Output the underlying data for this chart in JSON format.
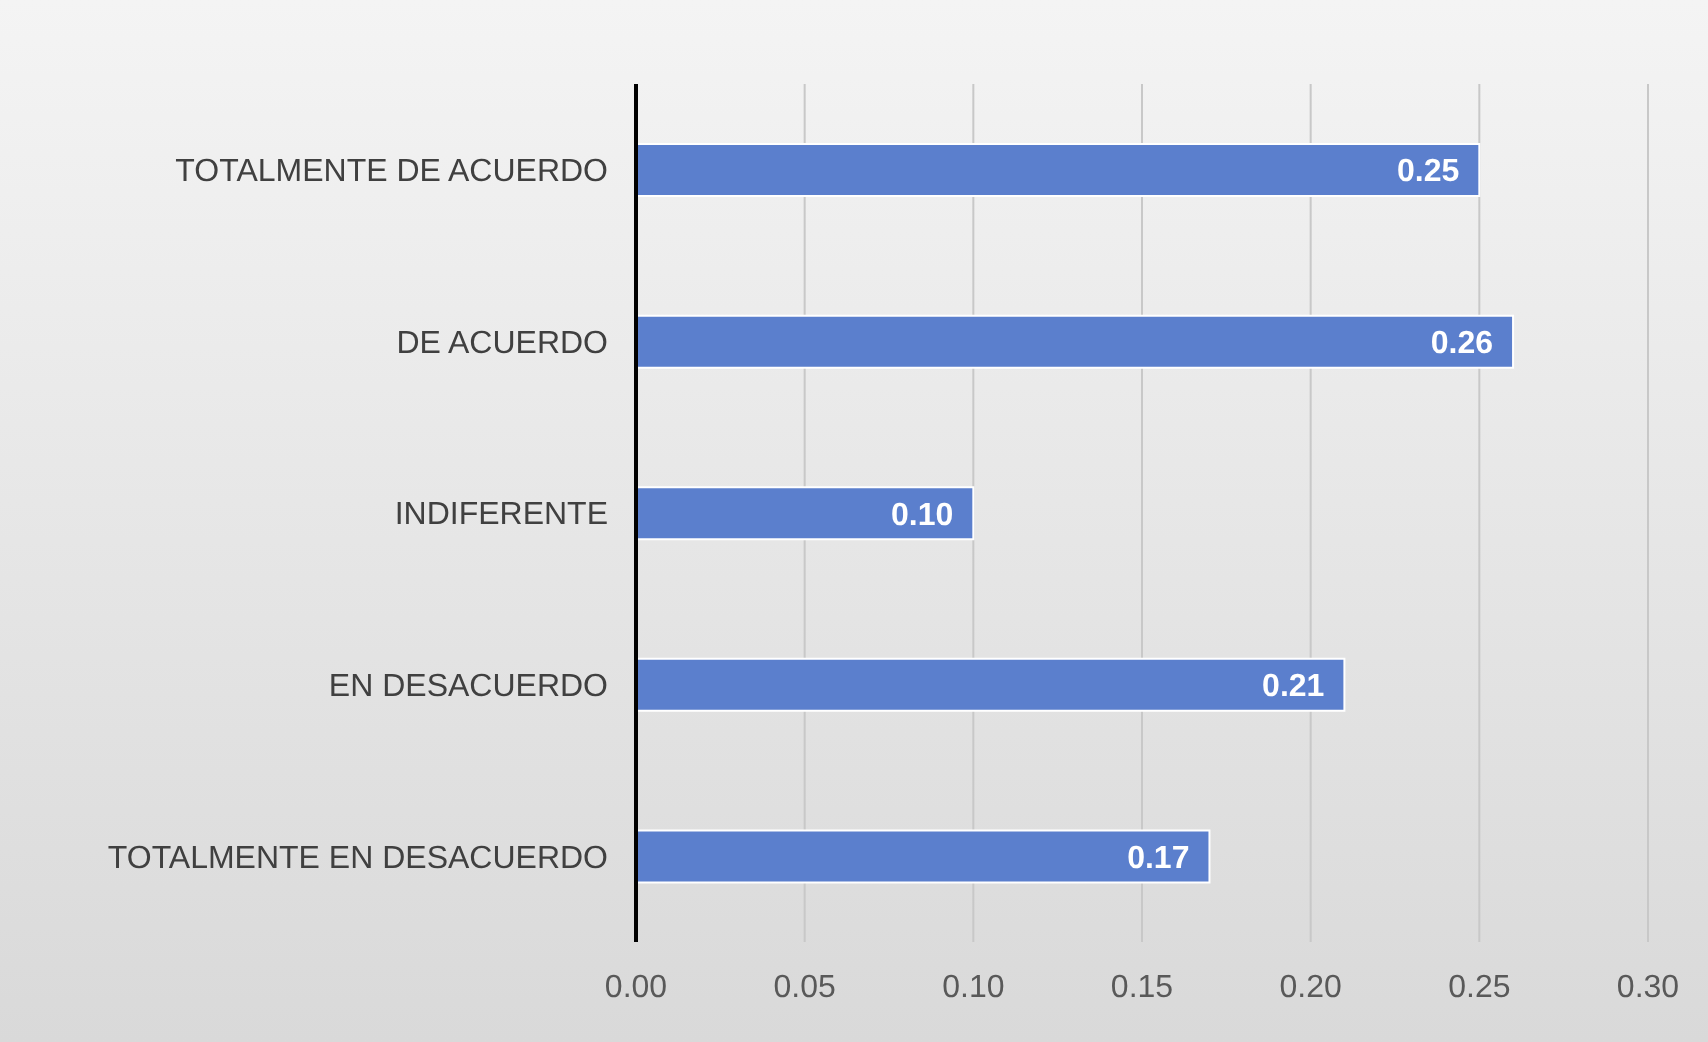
{
  "chart_data": {
    "type": "bar",
    "orientation": "horizontal",
    "categories": [
      "TOTALMENTE DE ACUERDO",
      "DE ACUERDO",
      "INDIFERENTE",
      "EN DESACUERDO",
      "TOTALMENTE EN DESACUERDO"
    ],
    "values": [
      0.25,
      0.26,
      0.1,
      0.21,
      0.17
    ],
    "value_labels": [
      "0.25",
      "0.26",
      "0.10",
      "0.21",
      "0.17"
    ],
    "color": "#5b7fcd",
    "xlim": [
      0,
      0.3
    ],
    "xticks": [
      {
        "value": 0,
        "label": "0.00"
      },
      {
        "value": 0.05,
        "label": "0.05"
      },
      {
        "value": 0.1,
        "label": "0.10"
      },
      {
        "value": 0.15,
        "label": "0.15"
      },
      {
        "value": 0.2,
        "label": "0.20"
      },
      {
        "value": 0.25,
        "label": "0.25"
      },
      {
        "value": 0.3,
        "label": "0.30"
      }
    ],
    "grid": "x"
  }
}
